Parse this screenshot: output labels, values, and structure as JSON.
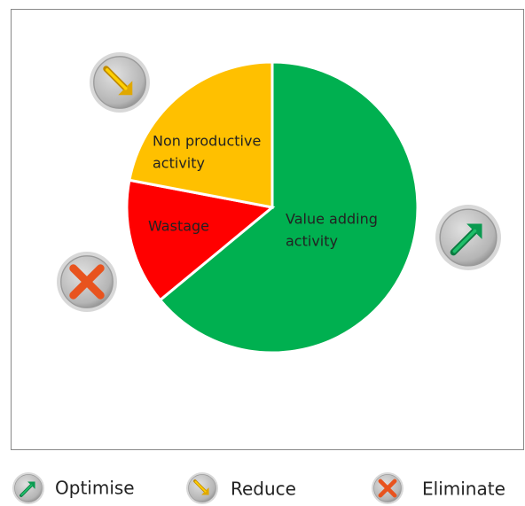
{
  "chart_data": {
    "type": "pie",
    "slices": [
      {
        "label": [
          "Value adding",
          "activity"
        ],
        "value": 64,
        "color": "#00b050"
      },
      {
        "label": [
          "Wastage"
        ],
        "value": 14,
        "color": "#ff0000"
      },
      {
        "label": [
          "Non productive",
          "activity"
        ],
        "value": 22,
        "color": "#ffc000"
      }
    ],
    "legend": [
      "Optimise",
      "Reduce",
      "Eliminate"
    ]
  }
}
